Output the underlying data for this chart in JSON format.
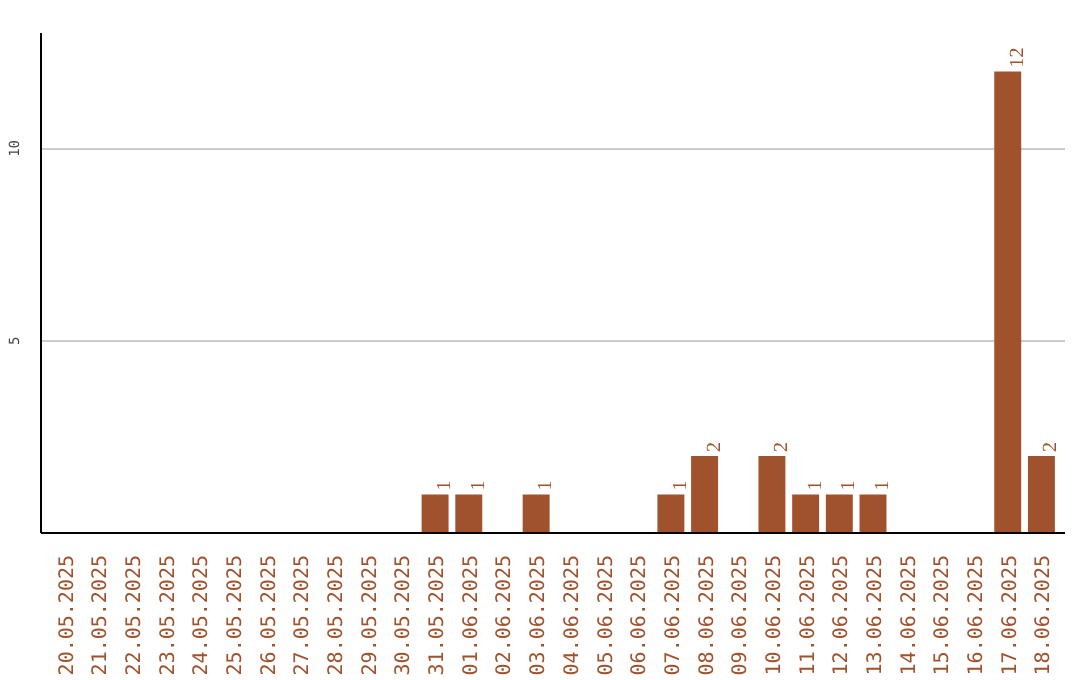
{
  "chart_data": {
    "type": "bar",
    "categories": [
      "20.05.2025",
      "21.05.2025",
      "22.05.2025",
      "23.05.2025",
      "24.05.2025",
      "25.05.2025",
      "26.05.2025",
      "27.05.2025",
      "28.05.2025",
      "29.05.2025",
      "30.05.2025",
      "31.05.2025",
      "01.06.2025",
      "02.06.2025",
      "03.06.2025",
      "04.06.2025",
      "05.06.2025",
      "06.06.2025",
      "07.06.2025",
      "08.06.2025",
      "09.06.2025",
      "10.06.2025",
      "11.06.2025",
      "12.06.2025",
      "13.06.2025",
      "14.06.2025",
      "15.06.2025",
      "16.06.2025",
      "17.06.2025",
      "18.06.2025"
    ],
    "values": [
      0,
      0,
      0,
      0,
      0,
      0,
      0,
      0,
      0,
      0,
      0,
      1,
      1,
      0,
      1,
      0,
      0,
      0,
      1,
      2,
      0,
      2,
      1,
      1,
      1,
      0,
      0,
      0,
      12,
      2
    ],
    "value_labels": [
      null,
      null,
      null,
      null,
      null,
      null,
      null,
      null,
      null,
      null,
      null,
      "1",
      "1",
      null,
      "1",
      null,
      null,
      null,
      "1",
      "2",
      null,
      "2",
      "1",
      "1",
      "1",
      null,
      null,
      null,
      "12",
      "2"
    ],
    "color": "#a0522d",
    "ylim": [
      0,
      13
    ],
    "yticks": [
      5,
      10
    ],
    "grid": "y"
  }
}
